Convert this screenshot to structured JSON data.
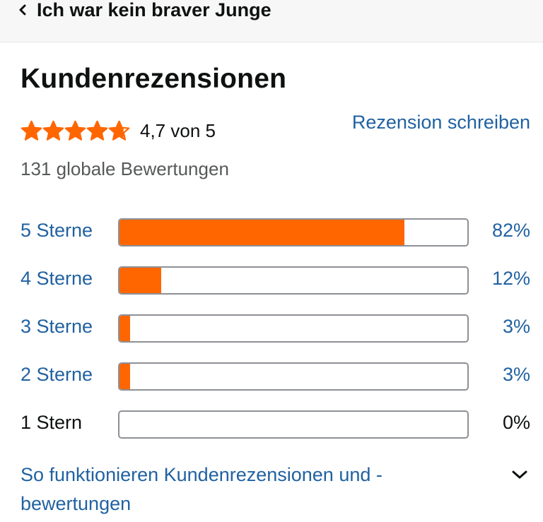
{
  "header": {
    "back_label": "Ich war kein braver Junge"
  },
  "reviews": {
    "title": "Kundenrezensionen",
    "rating_stars": 4.7,
    "rating_text": "4,7 von 5",
    "write_review": "Rezension schreiben",
    "global_ratings": "131 globale Bewertungen",
    "histogram": [
      {
        "label": "5 Sterne",
        "percent_text": "82%",
        "percent": 82,
        "link": true
      },
      {
        "label": "4 Sterne",
        "percent_text": "12%",
        "percent": 12,
        "link": true
      },
      {
        "label": "3 Sterne",
        "percent_text": "3%",
        "percent": 3,
        "link": true
      },
      {
        "label": "2 Sterne",
        "percent_text": "3%",
        "percent": 3,
        "link": true
      },
      {
        "label": "1 Stern",
        "percent_text": "0%",
        "percent": 0,
        "link": false
      }
    ],
    "how_it_works": "So funktionieren Kundenrezensionen und -bewertungen"
  },
  "colors": {
    "star": "#ff6600",
    "bar_fill": "#ff6600",
    "link": "#2162a1"
  },
  "icons": {
    "back": "chevron-left-icon",
    "expand": "chevron-down-icon",
    "star": "star-icon"
  }
}
